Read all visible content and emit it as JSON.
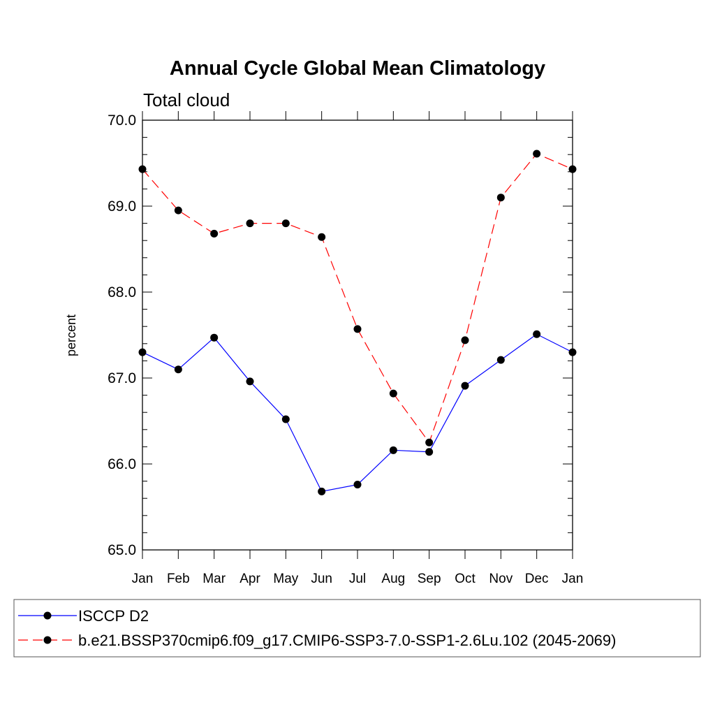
{
  "chart_data": {
    "type": "line",
    "title": "Annual Cycle Global Mean Climatology",
    "subtitle": "Total cloud",
    "xlabel": "",
    "ylabel": "percent",
    "categories": [
      "Jan",
      "Feb",
      "Mar",
      "Apr",
      "May",
      "Jun",
      "Jul",
      "Aug",
      "Sep",
      "Oct",
      "Nov",
      "Dec",
      "Jan"
    ],
    "ylim": [
      65.0,
      70.0
    ],
    "y_ticks": [
      "65.0",
      "66.0",
      "67.0",
      "68.0",
      "69.0",
      "70.0"
    ],
    "grid": false,
    "legend_position": "bottom",
    "series": [
      {
        "name": "ISCCP D2",
        "color": "#0000ff",
        "line_style": "solid",
        "marker": "filled-circle",
        "values": [
          67.3,
          67.1,
          67.47,
          66.96,
          66.52,
          65.68,
          65.76,
          66.16,
          66.14,
          66.91,
          67.21,
          67.51,
          67.3
        ]
      },
      {
        "name": "b.e21.BSSP370cmip6.f09_g17.CMIP6-SSP3-7.0-SSP1-2.6Lu.102 (2045-2069)",
        "color": "#ff0000",
        "line_style": "dashed",
        "marker": "filled-circle",
        "values": [
          69.43,
          68.95,
          68.68,
          68.8,
          68.8,
          68.64,
          67.57,
          66.82,
          66.25,
          67.44,
          69.1,
          69.61,
          69.43
        ]
      }
    ]
  }
}
